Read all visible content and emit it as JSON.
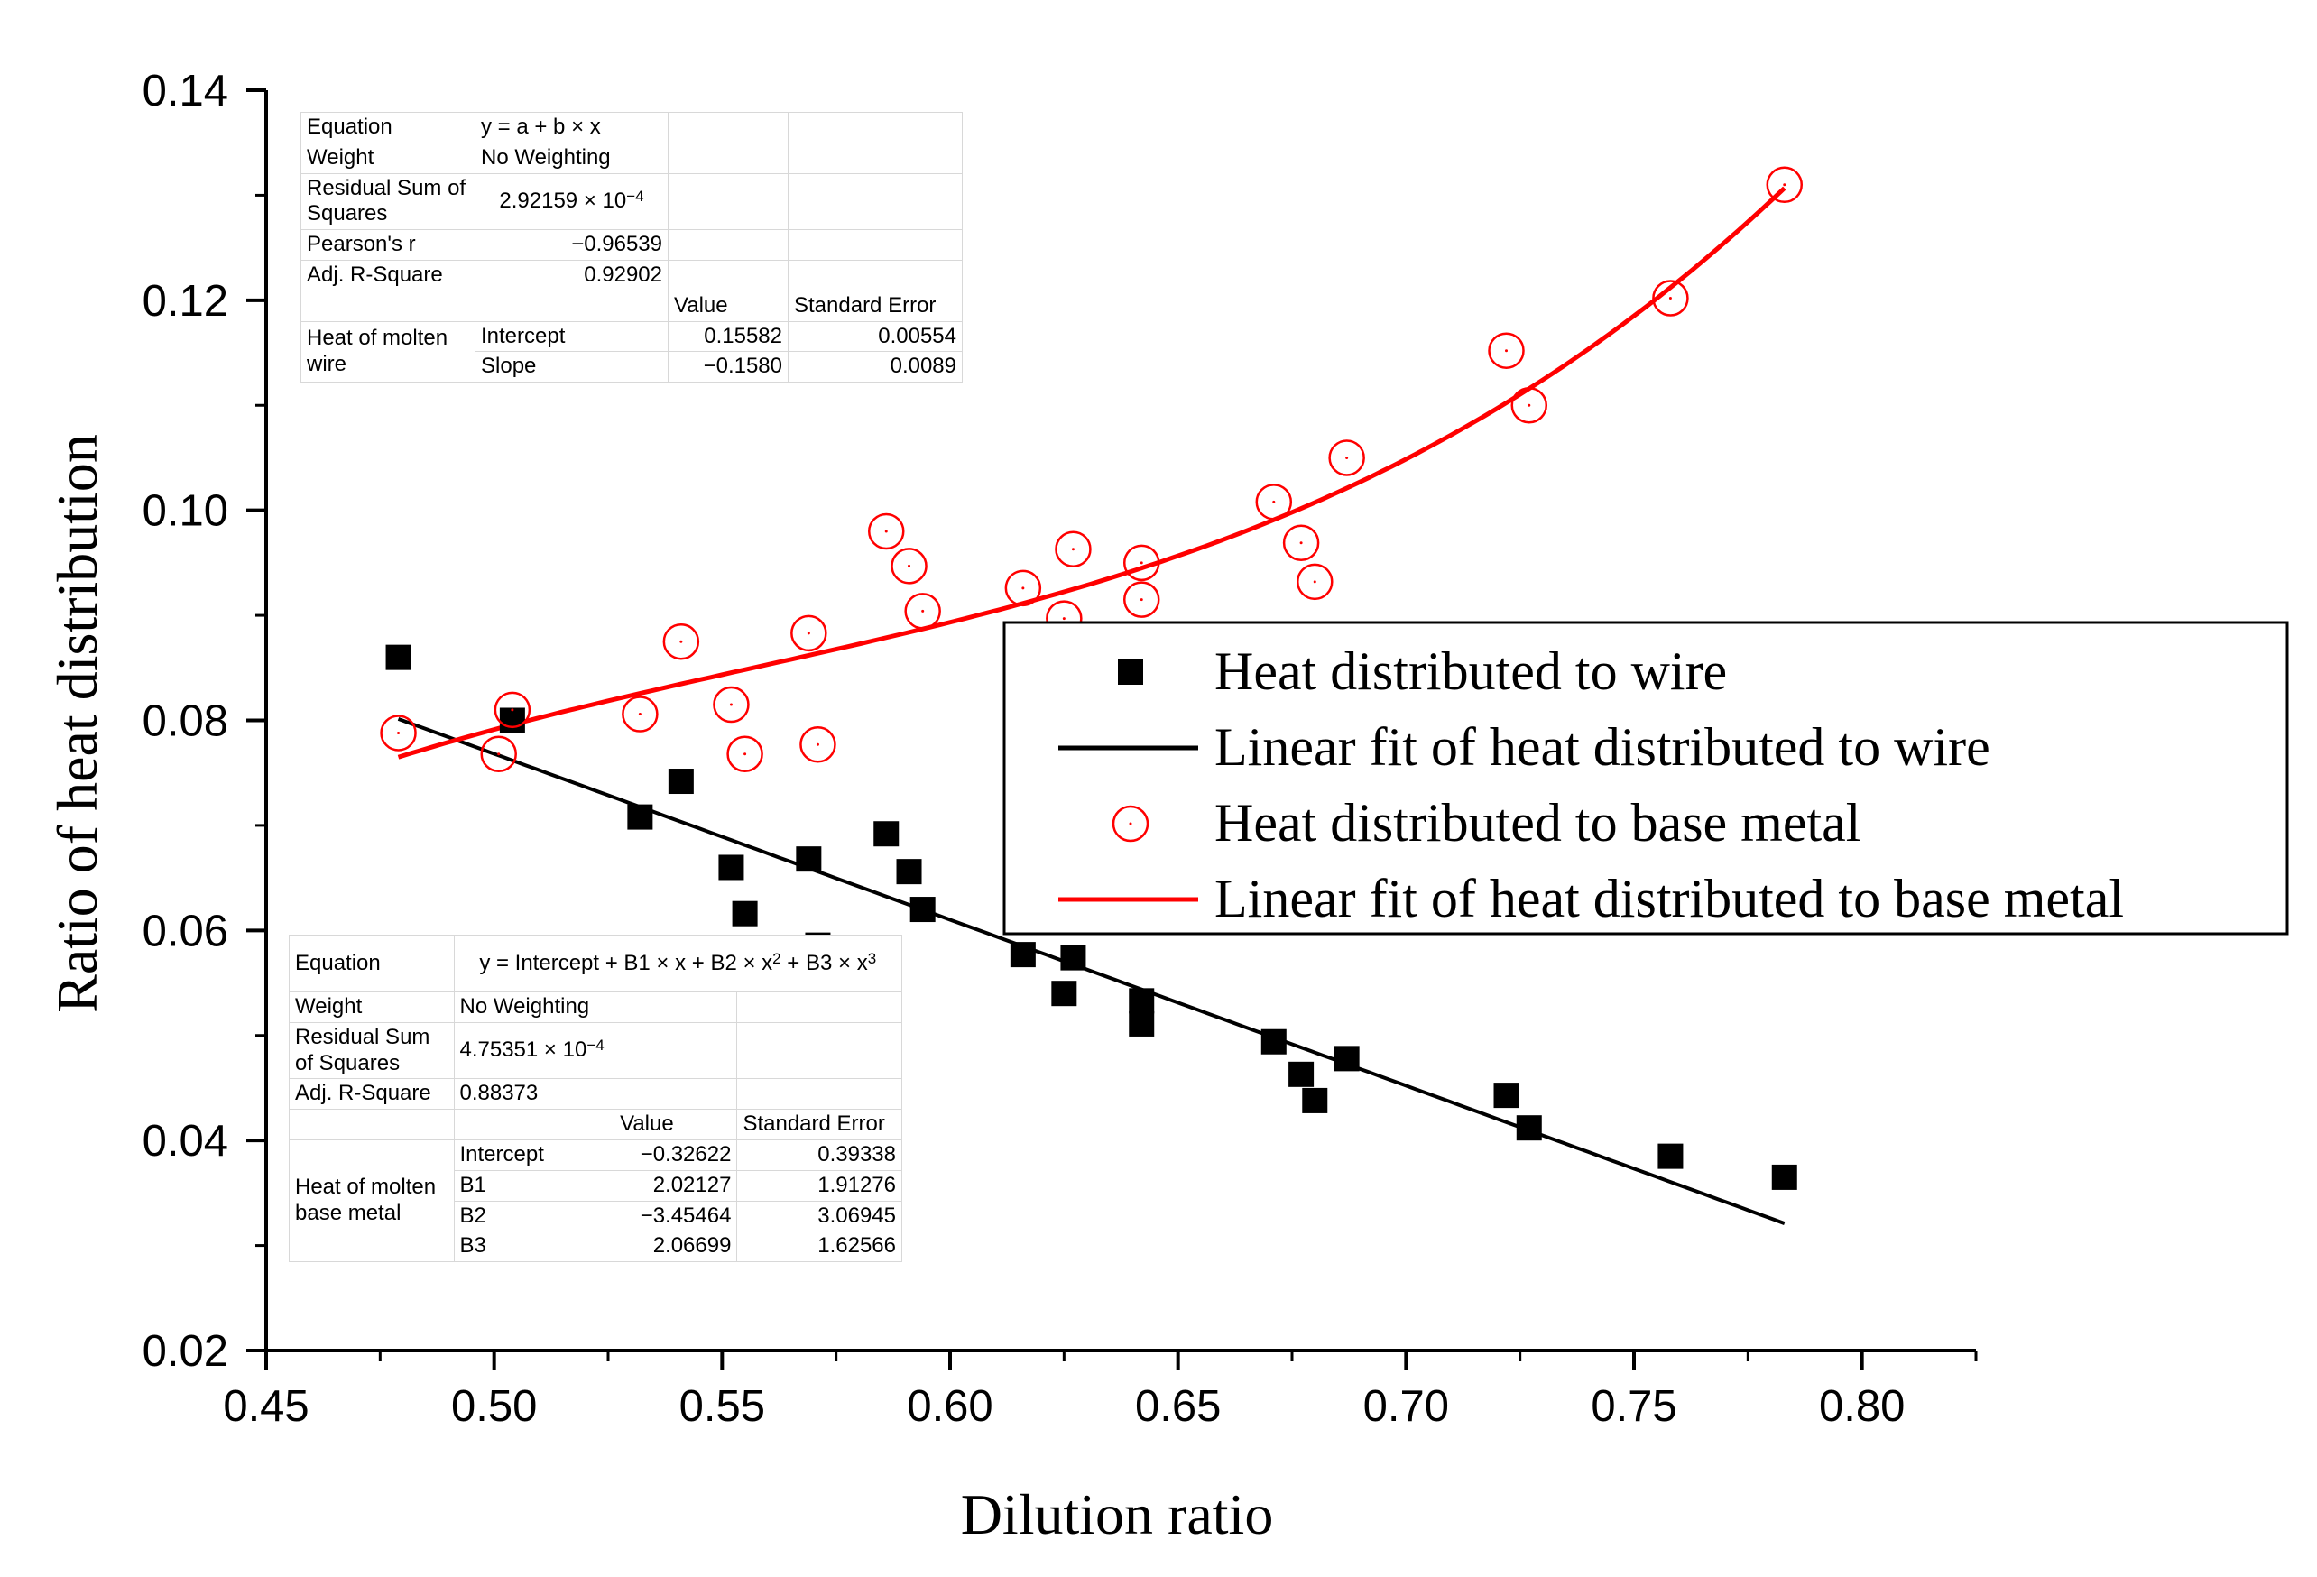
{
  "chart_data": {
    "type": "scatter",
    "xlabel": "Dilution ratio",
    "ylabel": "Ratio of heat distribution",
    "xlim": [
      0.45,
      0.825
    ],
    "ylim": [
      0.02,
      0.14
    ],
    "xticks": [
      "0.45",
      "0.50",
      "0.55",
      "0.60",
      "0.65",
      "0.70",
      "0.75",
      "0.80"
    ],
    "yticks": [
      "0.02",
      "0.04",
      "0.06",
      "0.08",
      "0.10",
      "0.12",
      "0.14"
    ],
    "series": [
      {
        "name": "Heat distributed to wire",
        "marker": "square",
        "color": "#000000",
        "points": [
          [
            0.479,
            0.086
          ],
          [
            0.504,
            0.08
          ],
          [
            0.532,
            0.0708
          ],
          [
            0.541,
            0.0742
          ],
          [
            0.552,
            0.066
          ],
          [
            0.555,
            0.0616
          ],
          [
            0.569,
            0.0668
          ],
          [
            0.571,
            0.0586
          ],
          [
            0.586,
            0.0692
          ],
          [
            0.591,
            0.0656
          ],
          [
            0.594,
            0.062
          ],
          [
            0.616,
            0.0577
          ],
          [
            0.625,
            0.054
          ],
          [
            0.627,
            0.0574
          ],
          [
            0.642,
            0.0533
          ],
          [
            0.642,
            0.0511
          ],
          [
            0.671,
            0.0494
          ],
          [
            0.677,
            0.0463
          ],
          [
            0.68,
            0.0438
          ],
          [
            0.687,
            0.0478
          ],
          [
            0.722,
            0.0443
          ],
          [
            0.727,
            0.0412
          ],
          [
            0.758,
            0.0385
          ],
          [
            0.783,
            0.0365
          ]
        ]
      },
      {
        "name": "Linear fit of heat distributed to wire",
        "type": "line",
        "color": "#000000",
        "intercept": 0.15582,
        "slope": -0.158,
        "x_range": [
          0.479,
          0.783
        ]
      },
      {
        "name": "Heat distributed to base metal",
        "marker": "open-circle",
        "color": "#ff0000",
        "points": [
          [
            0.479,
            0.0788
          ],
          [
            0.501,
            0.0768
          ],
          [
            0.504,
            0.081
          ],
          [
            0.532,
            0.0806
          ],
          [
            0.541,
            0.0875
          ],
          [
            0.552,
            0.0815
          ],
          [
            0.555,
            0.0768
          ],
          [
            0.569,
            0.0883
          ],
          [
            0.571,
            0.0777
          ],
          [
            0.586,
            0.098
          ],
          [
            0.591,
            0.0947
          ],
          [
            0.594,
            0.0904
          ],
          [
            0.616,
            0.0926
          ],
          [
            0.625,
            0.0897
          ],
          [
            0.627,
            0.0963
          ],
          [
            0.642,
            0.095
          ],
          [
            0.642,
            0.0915
          ],
          [
            0.671,
            0.1008
          ],
          [
            0.677,
            0.0969
          ],
          [
            0.68,
            0.0932
          ],
          [
            0.687,
            0.105
          ],
          [
            0.722,
            0.1152
          ],
          [
            0.727,
            0.11
          ],
          [
            0.758,
            0.1202
          ],
          [
            0.783,
            0.131
          ]
        ]
      },
      {
        "name": "Linear fit of heat distributed to base metal",
        "type": "line",
        "color": "#ff0000",
        "coefficients": [
          -0.32622,
          2.02127,
          -3.45464,
          2.06699
        ],
        "x_range": [
          0.479,
          0.783
        ]
      }
    ],
    "legend_position": "right",
    "fit_table_wire": {
      "rows": [
        [
          "Equation",
          "y = a + b × x",
          "",
          ""
        ],
        [
          "Weight",
          "No Weighting",
          "",
          ""
        ],
        [
          "Residual Sum of Squares",
          "2.92159 × 10",
          "",
          ""
        ],
        [
          "Pearson's r",
          "−0.96539",
          "",
          ""
        ],
        [
          "Adj. R-Square",
          "0.92902",
          "",
          ""
        ]
      ],
      "rss_exp": "−4",
      "header": [
        "Value",
        "Standard Error"
      ],
      "group": "Heat of molten wire",
      "params": [
        [
          "Intercept",
          "0.15582",
          "0.00554"
        ],
        [
          "Slope",
          "−0.1580",
          "0.0089"
        ]
      ]
    },
    "fit_table_base": {
      "equation_label": "Equation",
      "equation": "y = Intercept + B1 × x + B2 × x",
      "equation_mid": " + B3 × x",
      "exp2": "2",
      "exp3": "3",
      "weight_label": "Weight",
      "weight": "No Weighting",
      "rss_label": "Residual Sum of Squares",
      "rss": "4.75351 × 10",
      "rss_exp": "−4",
      "adjr_label": "Adj. R-Square",
      "adjr": "0.88373",
      "header": [
        "Value",
        "Standard Error"
      ],
      "group": "Heat of molten base metal",
      "params": [
        [
          "Intercept",
          "−0.32622",
          "0.39338"
        ],
        [
          "B1",
          "2.02127",
          "1.91276"
        ],
        [
          "B2",
          "−3.45464",
          "3.06945"
        ],
        [
          "B3",
          "2.06699",
          "1.62566"
        ]
      ]
    }
  }
}
